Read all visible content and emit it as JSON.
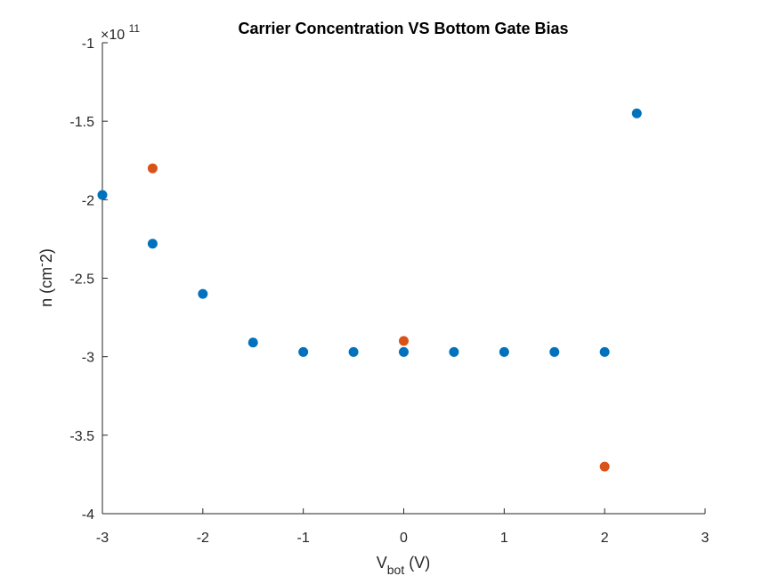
{
  "chart_data": {
    "type": "scatter",
    "title": "Carrier Concentration VS Bottom Gate Bias",
    "xlabel": {
      "main": "V",
      "sub": "bot",
      "rest": " (V)"
    },
    "ylabel": {
      "main": "n (cm",
      "sup": "-",
      "rest": "2)"
    },
    "y_exponent": {
      "times": "×10",
      "power": "11"
    },
    "xlim": [
      -3,
      3
    ],
    "ylim": [
      -4,
      -1
    ],
    "x_ticks": [
      -3,
      -2,
      -1,
      0,
      1,
      2,
      3
    ],
    "y_ticks": [
      -4,
      -3.5,
      -3,
      -2.5,
      -2,
      -1.5,
      -1
    ],
    "x_tick_labels": [
      "-3",
      "-2",
      "-1",
      "0",
      "1",
      "2",
      "3"
    ],
    "y_tick_labels": [
      "-4",
      "-3.5",
      "-3",
      "-2.5",
      "-2",
      "-1.5",
      "-1"
    ],
    "grid": false,
    "series": [
      {
        "color": "#0072BD",
        "points": [
          {
            "x": -3,
            "y": -1.97
          },
          {
            "x": -2.5,
            "y": -2.28
          },
          {
            "x": -2,
            "y": -2.6
          },
          {
            "x": -1.5,
            "y": -2.91
          },
          {
            "x": -1,
            "y": -2.97
          },
          {
            "x": -0.5,
            "y": -2.97
          },
          {
            "x": 0,
            "y": -2.97
          },
          {
            "x": 0.5,
            "y": -2.97
          },
          {
            "x": 1,
            "y": -2.97
          },
          {
            "x": 1.5,
            "y": -2.97
          },
          {
            "x": 2,
            "y": -2.97
          },
          {
            "x": 2.32,
            "y": -1.45
          }
        ]
      },
      {
        "color": "#D95319",
        "points": [
          {
            "x": -2.5,
            "y": -1.8
          },
          {
            "x": 0,
            "y": -2.9
          },
          {
            "x": 2,
            "y": -3.7
          }
        ]
      }
    ]
  }
}
